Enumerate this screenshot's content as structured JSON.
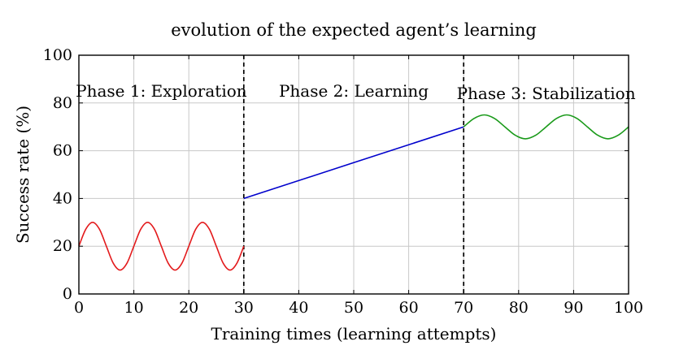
{
  "chart_data": {
    "type": "line",
    "title": "evolution of the expected agent’s learning",
    "xlabel": "Training times (learning attempts)",
    "ylabel": "Success rate (%)",
    "xlim": [
      0,
      100
    ],
    "ylim": [
      0,
      100
    ],
    "x_ticks": [
      0,
      10,
      20,
      30,
      40,
      50,
      60,
      70,
      80,
      90,
      100
    ],
    "y_ticks": [
      0,
      20,
      40,
      60,
      80,
      100
    ],
    "grid": true,
    "legend": "none",
    "phase_boundaries": [
      30,
      70
    ],
    "phase_labels": [
      {
        "text": "Phase 1: Exploration",
        "x": 15,
        "y": 85
      },
      {
        "text": "Phase 2: Learning",
        "x": 50,
        "y": 85
      },
      {
        "text": "Phase 3: Stabilization",
        "x": 85,
        "y": 84
      }
    ],
    "series": [
      {
        "color": "#e31a1c",
        "x": [
          0,
          1.25,
          2.5,
          3.75,
          5,
          6.25,
          7.5,
          8.75,
          10,
          11.25,
          12.5,
          13.75,
          15,
          16.25,
          17.5,
          18.75,
          20,
          21.25,
          22.5,
          23.75,
          25,
          26.25,
          27.5,
          28.75,
          30
        ],
        "values": [
          20,
          27.1,
          30,
          27.1,
          20,
          12.9,
          10,
          12.9,
          20,
          27.1,
          30,
          27.1,
          20,
          12.9,
          10,
          12.9,
          20,
          27.1,
          30,
          27.1,
          20,
          12.9,
          10,
          12.9,
          20
        ]
      },
      {
        "color": "#0000cc",
        "x": [
          30,
          70
        ],
        "values": [
          40,
          70
        ]
      },
      {
        "color": "#1a9a1a",
        "x": [
          70,
          71.875,
          73.75,
          75.625,
          77.5,
          79.375,
          81.25,
          83.125,
          85,
          86.875,
          88.75,
          90.625,
          92.5,
          94.375,
          96.25,
          98.125,
          100
        ],
        "values": [
          70,
          73.5,
          75,
          73.5,
          70,
          66.5,
          65,
          66.5,
          70,
          73.5,
          75,
          73.5,
          70,
          66.5,
          65,
          66.5,
          70
        ]
      }
    ]
  }
}
